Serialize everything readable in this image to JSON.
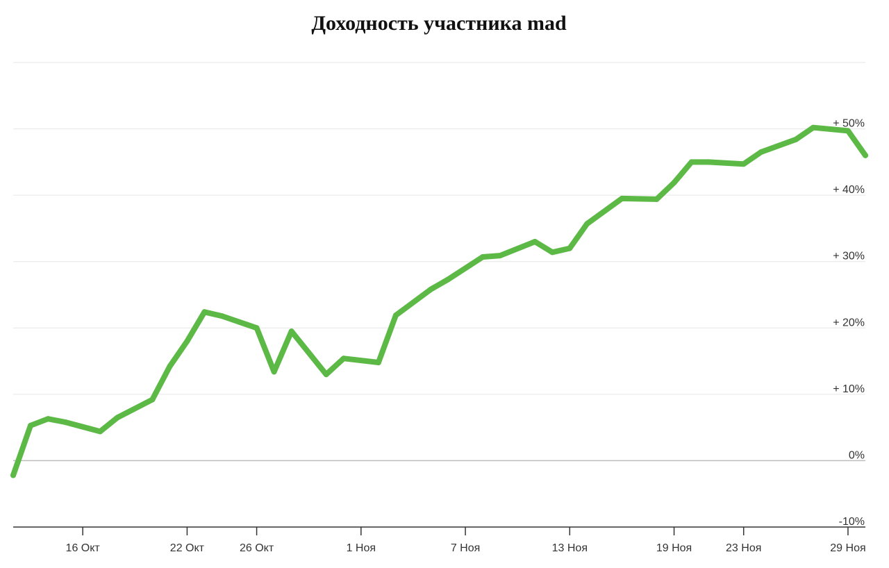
{
  "chart_data": {
    "type": "line",
    "title": "Доходность участника mad",
    "ylim": [
      -10,
      60
    ],
    "grid": true,
    "legend": "none",
    "y_ticks": [
      {
        "value": 50,
        "label": "+ 50%"
      },
      {
        "value": 40,
        "label": "+ 40%"
      },
      {
        "value": 30,
        "label": "+ 30%"
      },
      {
        "value": 20,
        "label": "+ 20%"
      },
      {
        "value": 10,
        "label": "+ 10%"
      },
      {
        "value": 0,
        "label": "0%"
      },
      {
        "value": -10,
        "label": "-10%"
      }
    ],
    "x_ticks": [
      {
        "date": "2023-10-16",
        "label": "16 Окт"
      },
      {
        "date": "2023-10-22",
        "label": "22 Окт"
      },
      {
        "date": "2023-10-26",
        "label": "26 Окт"
      },
      {
        "date": "2023-11-01",
        "label": "1 Ноя"
      },
      {
        "date": "2023-11-07",
        "label": "7 Ноя"
      },
      {
        "date": "2023-11-13",
        "label": "13 Ноя"
      },
      {
        "date": "2023-11-19",
        "label": "19 Ноя"
      },
      {
        "date": "2023-11-23",
        "label": "23 Ноя"
      },
      {
        "date": "2023-11-29",
        "label": "29 Ноя"
      }
    ],
    "x_range": [
      "2023-10-12",
      "2023-11-30"
    ],
    "series": [
      {
        "color": "#5cb946",
        "points": [
          {
            "date": "2023-10-12",
            "value": -2.2
          },
          {
            "date": "2023-10-13",
            "value": 5.3
          },
          {
            "date": "2023-10-14",
            "value": 6.3
          },
          {
            "date": "2023-10-15",
            "value": 5.8
          },
          {
            "date": "2023-10-17",
            "value": 4.4
          },
          {
            "date": "2023-10-18",
            "value": 6.5
          },
          {
            "date": "2023-10-20",
            "value": 9.2
          },
          {
            "date": "2023-10-21",
            "value": 14.2
          },
          {
            "date": "2023-10-22",
            "value": 18.0
          },
          {
            "date": "2023-10-23",
            "value": 22.4
          },
          {
            "date": "2023-10-24",
            "value": 21.8
          },
          {
            "date": "2023-10-26",
            "value": 20.0
          },
          {
            "date": "2023-10-27",
            "value": 13.4
          },
          {
            "date": "2023-10-28",
            "value": 19.5
          },
          {
            "date": "2023-10-30",
            "value": 13.0
          },
          {
            "date": "2023-10-31",
            "value": 15.4
          },
          {
            "date": "2023-11-02",
            "value": 14.8
          },
          {
            "date": "2023-11-03",
            "value": 21.9
          },
          {
            "date": "2023-11-05",
            "value": 25.8
          },
          {
            "date": "2023-11-06",
            "value": 27.3
          },
          {
            "date": "2023-11-08",
            "value": 30.7
          },
          {
            "date": "2023-11-09",
            "value": 30.9
          },
          {
            "date": "2023-11-11",
            "value": 33.0
          },
          {
            "date": "2023-11-12",
            "value": 31.4
          },
          {
            "date": "2023-11-13",
            "value": 32.0
          },
          {
            "date": "2023-11-14",
            "value": 35.7
          },
          {
            "date": "2023-11-16",
            "value": 39.5
          },
          {
            "date": "2023-11-18",
            "value": 39.4
          },
          {
            "date": "2023-11-19",
            "value": 41.9
          },
          {
            "date": "2023-11-20",
            "value": 45.0
          },
          {
            "date": "2023-11-21",
            "value": 45.0
          },
          {
            "date": "2023-11-23",
            "value": 44.7
          },
          {
            "date": "2023-11-24",
            "value": 46.5
          },
          {
            "date": "2023-11-26",
            "value": 48.4
          },
          {
            "date": "2023-11-27",
            "value": 50.2
          },
          {
            "date": "2023-11-29",
            "value": 49.7
          },
          {
            "date": "2023-11-30",
            "value": 46.0
          }
        ]
      }
    ]
  }
}
